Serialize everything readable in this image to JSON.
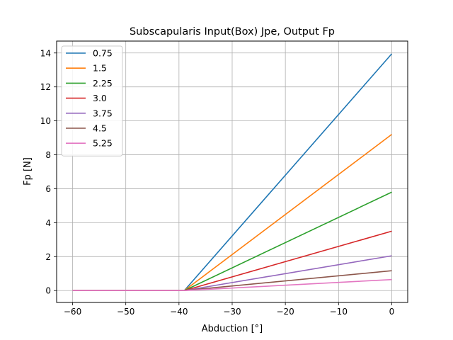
{
  "chart_data": {
    "type": "line",
    "title": "Subscapularis Input(Box) Jpe, Output Fp",
    "xlabel": "Abduction [°]",
    "ylabel": "Fp [N]",
    "xlim": [
      -63,
      3
    ],
    "ylim": [
      -0.7,
      14.7
    ],
    "xticks": [
      -60,
      -50,
      -40,
      -30,
      -20,
      -10,
      0
    ],
    "yticks": [
      0,
      2,
      4,
      6,
      8,
      10,
      12,
      14
    ],
    "xtick_labels": [
      "−60",
      "−50",
      "−40",
      "−30",
      "−20",
      "−10",
      "0"
    ],
    "ytick_labels": [
      "0",
      "2",
      "4",
      "6",
      "8",
      "10",
      "12",
      "14"
    ],
    "grid": true,
    "legend_position": "top-left",
    "x": [
      -60,
      -39,
      0
    ],
    "series": [
      {
        "name": "0.75",
        "color": "#1f77b4",
        "values": [
          0,
          0,
          13.95
        ]
      },
      {
        "name": "1.5",
        "color": "#ff7f0e",
        "values": [
          0,
          0,
          9.2
        ]
      },
      {
        "name": "2.25",
        "color": "#2ca02c",
        "values": [
          0,
          0,
          5.8
        ]
      },
      {
        "name": "3.0",
        "color": "#d62728",
        "values": [
          0,
          0,
          3.5
        ]
      },
      {
        "name": "3.75",
        "color": "#9467bd",
        "values": [
          0,
          0,
          2.05
        ]
      },
      {
        "name": "4.5",
        "color": "#8c564b",
        "values": [
          0,
          0,
          1.17
        ]
      },
      {
        "name": "5.25",
        "color": "#e377c2",
        "values": [
          0,
          0,
          0.65
        ]
      }
    ]
  }
}
